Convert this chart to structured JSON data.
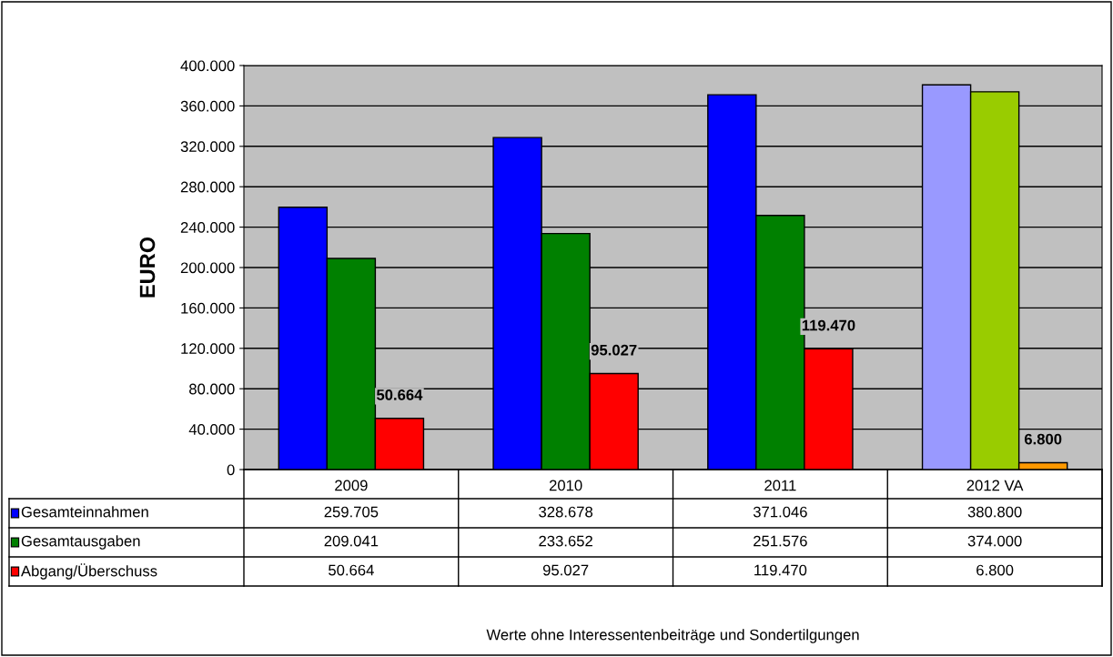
{
  "chart_data": {
    "type": "bar",
    "ylabel": "EURO",
    "categories": [
      "2009",
      "2010",
      "2011",
      "2012 VA"
    ],
    "series": [
      {
        "name": "Gesamteinnahmen",
        "color": "#0000ff",
        "colors": [
          "#0000ff",
          "#0000ff",
          "#0000ff",
          "#9999ff"
        ],
        "values": [
          259705,
          328678,
          371046,
          380800
        ],
        "value_labels": [
          "259.705",
          "328.678",
          "371.046",
          "380.800"
        ]
      },
      {
        "name": "Gesamtausgaben",
        "color": "#008000",
        "colors": [
          "#008000",
          "#008000",
          "#008000",
          "#99cc00"
        ],
        "values": [
          209041,
          233652,
          251576,
          374000
        ],
        "value_labels": [
          "209.041",
          "233.652",
          "251.576",
          "374.000"
        ]
      },
      {
        "name": "Abgang/Überschuss",
        "color": "#ff0000",
        "colors": [
          "#ff0000",
          "#ff0000",
          "#ff0000",
          "#ff9900"
        ],
        "values": [
          50664,
          95027,
          119470,
          6800
        ],
        "value_labels": [
          "50.664",
          "95.027",
          "119.470",
          "6.800"
        ]
      }
    ],
    "ylim": [
      0,
      400000
    ],
    "yticks": [
      {
        "value": 0,
        "label": "0"
      },
      {
        "value": 40000,
        "label": "40.000"
      },
      {
        "value": 80000,
        "label": "80.000"
      },
      {
        "value": 120000,
        "label": "120.000"
      },
      {
        "value": 160000,
        "label": "160.000"
      },
      {
        "value": 200000,
        "label": "200.000"
      },
      {
        "value": 240000,
        "label": "240.000"
      },
      {
        "value": 280000,
        "label": "280.000"
      },
      {
        "value": 320000,
        "label": "320.000"
      },
      {
        "value": 360000,
        "label": "360.000"
      },
      {
        "value": 400000,
        "label": "400.000"
      }
    ],
    "grid": "y",
    "legend": "bottom left",
    "annotations": [
      "Werte ohne Interessentenbeiträge und Sondertilgungen"
    ]
  }
}
